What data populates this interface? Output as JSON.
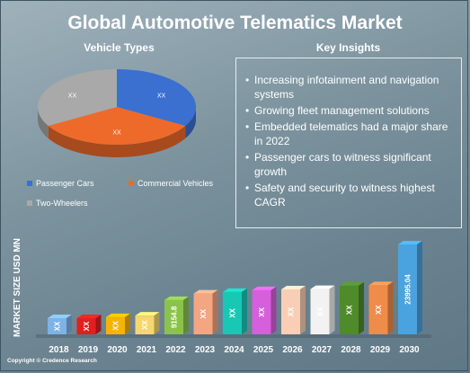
{
  "title": "Global Automotive Telematics Market",
  "vehicle_types_heading": "Vehicle Types",
  "key_insights_heading": "Key Insights",
  "insights": [
    "Increasing infotainment and navigation systems",
    "Growing fleet management solutions",
    "Embedded telematics had a major share in 2022",
    "Passenger cars to witness significant growth",
    "Safety and security to witness highest CAGR"
  ],
  "ylabel": "MARKET SIZE USD MN",
  "copyright": "Copyright © Credence Research",
  "chart_data": [
    {
      "type": "pie",
      "title": "Vehicle Types",
      "slices": [
        {
          "name": "Passenger Cars",
          "value": 33.3,
          "label": "XX",
          "color": "#3b6fd0"
        },
        {
          "name": "Commercial Vehicles",
          "value": 33.3,
          "label": "XX",
          "color": "#ee6a2a"
        },
        {
          "name": "Two-Wheelers",
          "value": 33.3,
          "label": "XX",
          "color": "#a9a9a9"
        }
      ],
      "legend": "bottom"
    },
    {
      "type": "bar",
      "categories": [
        "2018",
        "2019",
        "2020",
        "2021",
        "2022",
        "2023",
        "2024",
        "2025",
        "2026",
        "2027",
        "2028",
        "2029",
        "2030"
      ],
      "values": [
        4000,
        4300,
        4600,
        5000,
        9154.8,
        10900,
        11300,
        11800,
        12000,
        12100,
        13000,
        13100,
        23995.04
      ],
      "data_labels": [
        "XX",
        "XX",
        "XX",
        "XX",
        "9154.8",
        "XX",
        "XX",
        "XX",
        "XX",
        "XX",
        "XX",
        "XX",
        "23995.04"
      ],
      "colors": [
        "#7fb2e5",
        "#e02020",
        "#f5b400",
        "#f5d76e",
        "#8bc34a",
        "#f4a582",
        "#19c8b4",
        "#d65fdc",
        "#f8cfb6",
        "#f2f2f2",
        "#4f8a2b",
        "#f08c4a",
        "#4aa3df"
      ],
      "ylabel": "MARKET SIZE USD MN",
      "ylim": [
        0,
        24000
      ],
      "grid": false
    }
  ]
}
